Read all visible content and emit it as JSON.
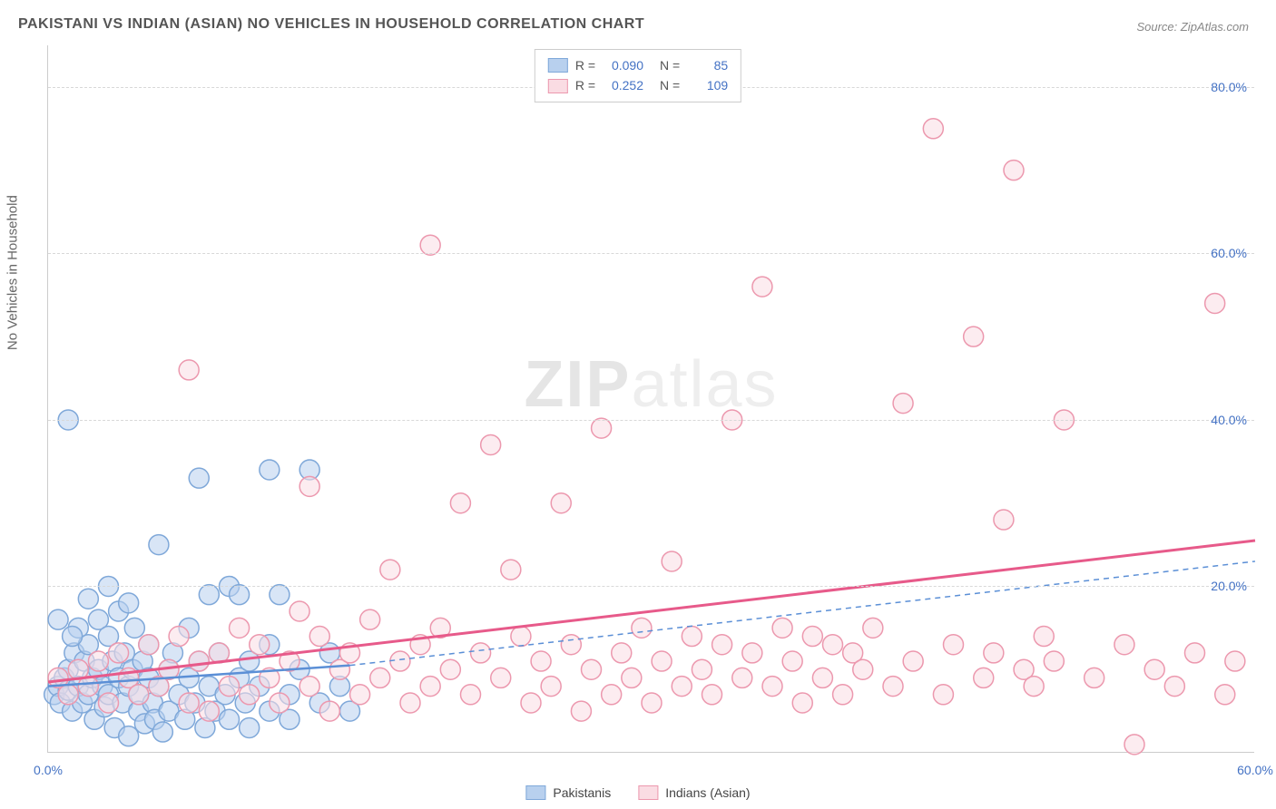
{
  "title": "PAKISTANI VS INDIAN (ASIAN) NO VEHICLES IN HOUSEHOLD CORRELATION CHART",
  "source": "Source: ZipAtlas.com",
  "ylabel": "No Vehicles in Household",
  "watermark_bold": "ZIP",
  "watermark_rest": "atlas",
  "chart": {
    "type": "scatter",
    "xlim": [
      0,
      60
    ],
    "ylim": [
      0,
      85
    ],
    "xtick_labels": [
      "0.0%",
      "60.0%"
    ],
    "xtick_positions": [
      0,
      60
    ],
    "ytick_labels": [
      "20.0%",
      "40.0%",
      "60.0%",
      "80.0%"
    ],
    "ytick_positions": [
      20,
      40,
      60,
      80
    ],
    "background_color": "#ffffff",
    "grid_color": "#d8d8d8",
    "marker_radius": 11,
    "marker_stroke_width": 1.5,
    "series": [
      {
        "name": "Pakistanis",
        "fill_color": "#b8d0ee",
        "stroke_color": "#7fa8d9",
        "fill_opacity": 0.55,
        "R": "0.090",
        "N": "85",
        "trend": {
          "x1": 0,
          "y1": 8,
          "x2": 15,
          "y2": 10.5,
          "x2b": 60,
          "y2b": 23,
          "solid_until_x": 15,
          "dash": "6 5",
          "color": "#5b8fd6",
          "width": 2
        },
        "points": [
          [
            0.3,
            7
          ],
          [
            0.5,
            8
          ],
          [
            0.6,
            6
          ],
          [
            0.8,
            9
          ],
          [
            1.0,
            7.5
          ],
          [
            1.0,
            10
          ],
          [
            1.2,
            5
          ],
          [
            1.3,
            12
          ],
          [
            1.5,
            8
          ],
          [
            1.5,
            15
          ],
          [
            1.7,
            6
          ],
          [
            1.8,
            11
          ],
          [
            2.0,
            7
          ],
          [
            2.0,
            13
          ],
          [
            2.2,
            9
          ],
          [
            2.3,
            4
          ],
          [
            2.5,
            10
          ],
          [
            2.5,
            16
          ],
          [
            2.7,
            8
          ],
          [
            2.8,
            5.5
          ],
          [
            3.0,
            7
          ],
          [
            3.0,
            14
          ],
          [
            3.2,
            11
          ],
          [
            3.3,
            3
          ],
          [
            3.5,
            9
          ],
          [
            3.5,
            17
          ],
          [
            3.7,
            6
          ],
          [
            3.8,
            12
          ],
          [
            4.0,
            8
          ],
          [
            4.0,
            2
          ],
          [
            4.2,
            10
          ],
          [
            4.3,
            15
          ],
          [
            4.5,
            7
          ],
          [
            4.5,
            5
          ],
          [
            4.7,
            11
          ],
          [
            4.8,
            3.5
          ],
          [
            5.0,
            9
          ],
          [
            5.0,
            13
          ],
          [
            5.2,
            6
          ],
          [
            5.3,
            4
          ],
          [
            5.5,
            8
          ],
          [
            5.7,
            2.5
          ],
          [
            6.0,
            10
          ],
          [
            6.0,
            5
          ],
          [
            6.2,
            12
          ],
          [
            6.5,
            7
          ],
          [
            6.8,
            4
          ],
          [
            7.0,
            9
          ],
          [
            7.0,
            15
          ],
          [
            7.3,
            6
          ],
          [
            7.5,
            11
          ],
          [
            7.8,
            3
          ],
          [
            8.0,
            8
          ],
          [
            8.0,
            19
          ],
          [
            8.3,
            5
          ],
          [
            8.5,
            12
          ],
          [
            8.8,
            7
          ],
          [
            9.0,
            4
          ],
          [
            9.0,
            20
          ],
          [
            9.5,
            9
          ],
          [
            9.8,
            6
          ],
          [
            10.0,
            11
          ],
          [
            10.0,
            3
          ],
          [
            10.5,
            8
          ],
          [
            11.0,
            5
          ],
          [
            11.0,
            13
          ],
          [
            11.5,
            19
          ],
          [
            12.0,
            7
          ],
          [
            12.0,
            4
          ],
          [
            12.5,
            10
          ],
          [
            13.0,
            34
          ],
          [
            13.5,
            6
          ],
          [
            14.0,
            12
          ],
          [
            14.5,
            8
          ],
          [
            15.0,
            5
          ],
          [
            5.5,
            25
          ],
          [
            1.0,
            40
          ],
          [
            7.5,
            33
          ],
          [
            11.0,
            34
          ],
          [
            3.0,
            20
          ],
          [
            4.0,
            18
          ],
          [
            2.0,
            18.5
          ],
          [
            0.5,
            16
          ],
          [
            1.2,
            14
          ],
          [
            9.5,
            19
          ]
        ]
      },
      {
        "name": "Indians (Asian)",
        "fill_color": "#fadce3",
        "stroke_color": "#ec98ae",
        "fill_opacity": 0.55,
        "R": "0.252",
        "N": "109",
        "trend": {
          "x1": 0,
          "y1": 8.5,
          "x2": 60,
          "y2": 25.5,
          "color": "#e75a8a",
          "width": 3
        },
        "points": [
          [
            0.5,
            9
          ],
          [
            1.0,
            7
          ],
          [
            1.5,
            10
          ],
          [
            2.0,
            8
          ],
          [
            2.5,
            11
          ],
          [
            3.0,
            6
          ],
          [
            3.5,
            12
          ],
          [
            4.0,
            9
          ],
          [
            4.5,
            7
          ],
          [
            5.0,
            13
          ],
          [
            5.5,
            8
          ],
          [
            6.0,
            10
          ],
          [
            6.5,
            14
          ],
          [
            7.0,
            6
          ],
          [
            7.5,
            11
          ],
          [
            8.0,
            5
          ],
          [
            8.5,
            12
          ],
          [
            9.0,
            8
          ],
          [
            9.5,
            15
          ],
          [
            10.0,
            7
          ],
          [
            10.5,
            13
          ],
          [
            11.0,
            9
          ],
          [
            11.5,
            6
          ],
          [
            12.0,
            11
          ],
          [
            12.5,
            17
          ],
          [
            13.0,
            8
          ],
          [
            13.5,
            14
          ],
          [
            14.0,
            5
          ],
          [
            14.5,
            10
          ],
          [
            15.0,
            12
          ],
          [
            15.5,
            7
          ],
          [
            16.0,
            16
          ],
          [
            16.5,
            9
          ],
          [
            17.0,
            22
          ],
          [
            17.5,
            11
          ],
          [
            18.0,
            6
          ],
          [
            18.5,
            13
          ],
          [
            19.0,
            8
          ],
          [
            19.5,
            15
          ],
          [
            20.0,
            10
          ],
          [
            20.5,
            30
          ],
          [
            21.0,
            7
          ],
          [
            21.5,
            12
          ],
          [
            22.0,
            37
          ],
          [
            22.5,
            9
          ],
          [
            23.0,
            22
          ],
          [
            23.5,
            14
          ],
          [
            24.0,
            6
          ],
          [
            24.5,
            11
          ],
          [
            25.0,
            8
          ],
          [
            25.5,
            30
          ],
          [
            26.0,
            13
          ],
          [
            26.5,
            5
          ],
          [
            27.0,
            10
          ],
          [
            27.5,
            39
          ],
          [
            28.0,
            7
          ],
          [
            28.5,
            12
          ],
          [
            29.0,
            9
          ],
          [
            29.5,
            15
          ],
          [
            30.0,
            6
          ],
          [
            30.5,
            11
          ],
          [
            31.0,
            23
          ],
          [
            31.5,
            8
          ],
          [
            32.0,
            14
          ],
          [
            32.5,
            10
          ],
          [
            33.0,
            7
          ],
          [
            33.5,
            13
          ],
          [
            34.0,
            40
          ],
          [
            34.5,
            9
          ],
          [
            35.0,
            12
          ],
          [
            35.5,
            56
          ],
          [
            36.0,
            8
          ],
          [
            36.5,
            15
          ],
          [
            37.0,
            11
          ],
          [
            37.5,
            6
          ],
          [
            38.0,
            14
          ],
          [
            38.5,
            9
          ],
          [
            39.0,
            13
          ],
          [
            39.5,
            7
          ],
          [
            40.0,
            12
          ],
          [
            40.5,
            10
          ],
          [
            41.0,
            15
          ],
          [
            42.0,
            8
          ],
          [
            42.5,
            42
          ],
          [
            43.0,
            11
          ],
          [
            44.0,
            75
          ],
          [
            44.5,
            7
          ],
          [
            45.0,
            13
          ],
          [
            46.0,
            50
          ],
          [
            46.5,
            9
          ],
          [
            47.0,
            12
          ],
          [
            47.5,
            28
          ],
          [
            48.0,
            70
          ],
          [
            48.5,
            10
          ],
          [
            49.0,
            8
          ],
          [
            49.5,
            14
          ],
          [
            50.0,
            11
          ],
          [
            50.5,
            40
          ],
          [
            52.0,
            9
          ],
          [
            53.5,
            13
          ],
          [
            54.0,
            1
          ],
          [
            55.0,
            10
          ],
          [
            56.0,
            8
          ],
          [
            57.0,
            12
          ],
          [
            58.0,
            54
          ],
          [
            58.5,
            7
          ],
          [
            59.0,
            11
          ],
          [
            7.0,
            46
          ],
          [
            19.0,
            61
          ],
          [
            13.0,
            32
          ]
        ]
      }
    ]
  },
  "legend": {
    "series1_label": "Pakistanis",
    "series2_label": "Indians (Asian)"
  },
  "stats_labels": {
    "R": "R =",
    "N": "N ="
  }
}
